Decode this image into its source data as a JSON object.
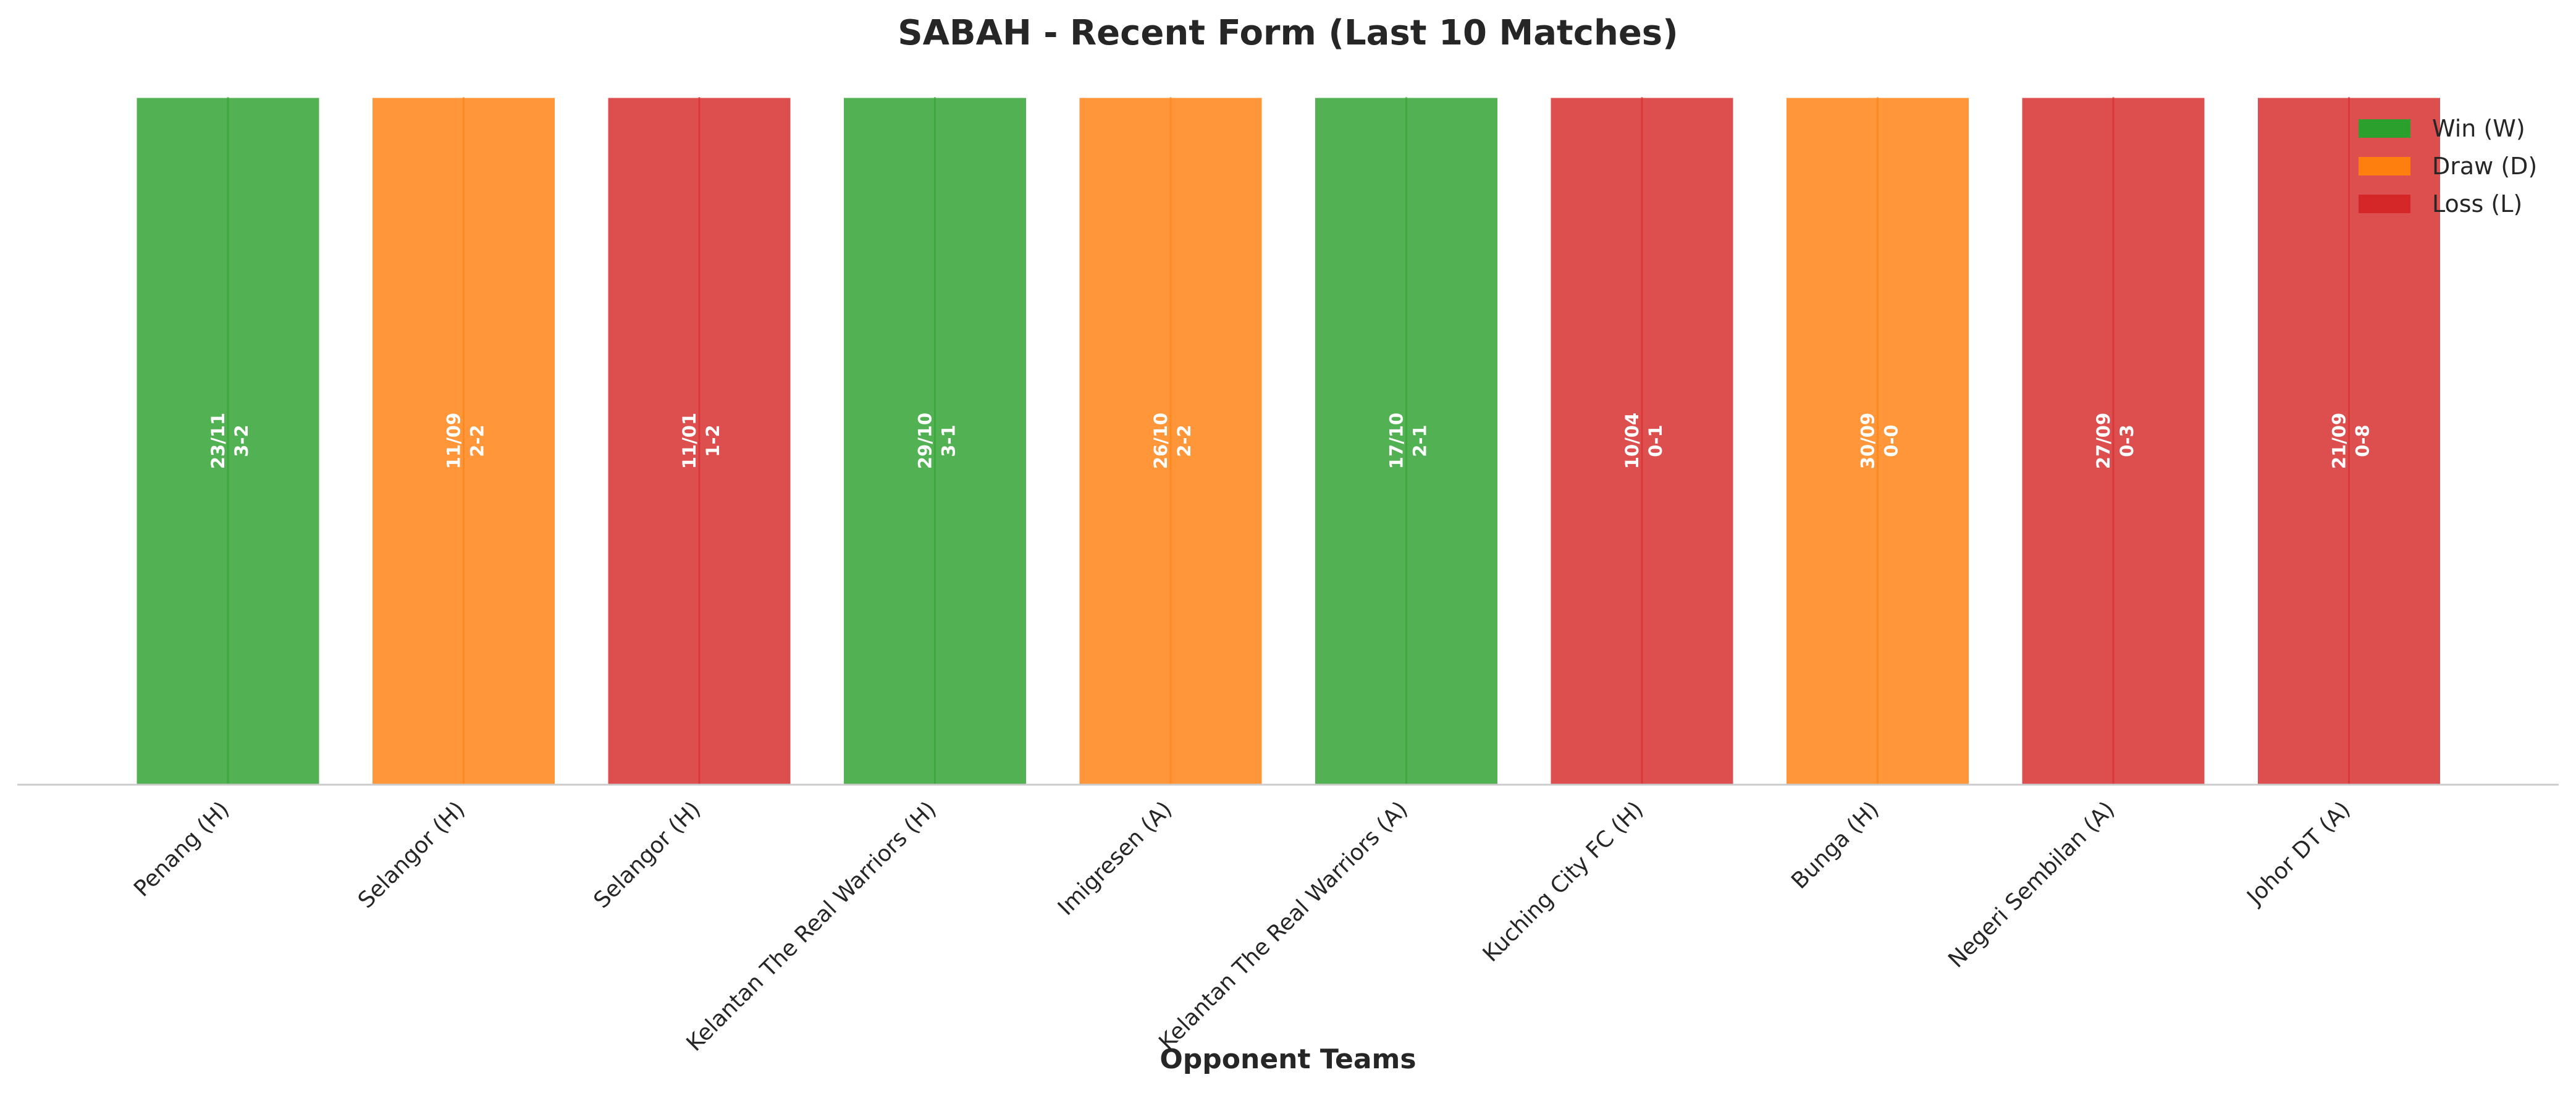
{
  "chart_data": {
    "type": "bar",
    "title": "SABAH - Recent Form (Last 10 Matches)",
    "xlabel": "Opponent Teams",
    "ylabel": "",
    "ylim": [
      0,
      1
    ],
    "grid": false,
    "legend_position": "top-right",
    "colors": {
      "W": "#2ca02c",
      "D": "#ff7f0e",
      "L": "#d62728"
    },
    "legend": [
      {
        "key": "W",
        "label": "Win (W)"
      },
      {
        "key": "D",
        "label": "Draw (D)"
      },
      {
        "key": "L",
        "label": "Loss (L)"
      }
    ],
    "categories": [
      "Penang (H)",
      "Selangor (H)",
      "Selangor (H)",
      "Kelantan The Real Warriors (H)",
      "Imigresen (A)",
      "Kelantan The Real Warriors (A)",
      "Kuching City FC (H)",
      "Bunga (H)",
      "Negeri Sembilan (A)",
      "Johor DT (A)"
    ],
    "values": [
      1,
      1,
      1,
      1,
      1,
      1,
      1,
      1,
      1,
      1
    ],
    "results": [
      "W",
      "D",
      "L",
      "W",
      "D",
      "W",
      "L",
      "D",
      "L",
      "L"
    ],
    "dates": [
      "23/11",
      "11/09",
      "11/01",
      "29/10",
      "26/10",
      "17/10",
      "10/04",
      "30/09",
      "27/09",
      "21/09"
    ],
    "scores": [
      "3-2",
      "2-2",
      "1-2",
      "3-1",
      "2-2",
      "2-1",
      "0-1",
      "0-0",
      "0-3",
      "0-8"
    ]
  }
}
